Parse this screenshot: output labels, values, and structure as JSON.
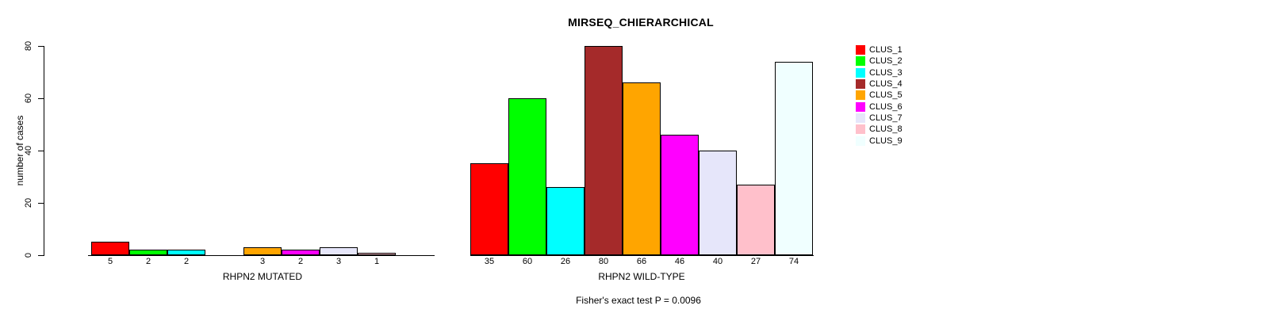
{
  "chart_data": {
    "type": "bar",
    "title": "MIRSEQ_CHIERARCHICAL",
    "ylabel": "number of cases",
    "ylim": [
      0,
      80
    ],
    "yticks": [
      0,
      20,
      40,
      60,
      80
    ],
    "grid": false,
    "legend_position": "right",
    "series": [
      {
        "name": "CLUS_1",
        "color": "#FF0000"
      },
      {
        "name": "CLUS_2",
        "color": "#00FF00"
      },
      {
        "name": "CLUS_3",
        "color": "#00FFFF"
      },
      {
        "name": "CLUS_4",
        "color": "#A52A2A"
      },
      {
        "name": "CLUS_5",
        "color": "#FFA500"
      },
      {
        "name": "CLUS_6",
        "color": "#FF00FF"
      },
      {
        "name": "CLUS_7",
        "color": "#E6E6FA"
      },
      {
        "name": "CLUS_8",
        "color": "#FFC0CB"
      },
      {
        "name": "CLUS_9",
        "color": "#F0FFFF"
      }
    ],
    "groups": [
      {
        "label": "RHPN2 MUTATED",
        "values": [
          5,
          2,
          2,
          0,
          3,
          2,
          3,
          1,
          0
        ]
      },
      {
        "label": "RHPN2 WILD-TYPE",
        "values": [
          35,
          60,
          26,
          80,
          66,
          46,
          40,
          27,
          74
        ]
      }
    ],
    "bar_value_labels": "values shown under each non-zero bar",
    "annotation": "Fisher's exact test P = 0.0096"
  }
}
